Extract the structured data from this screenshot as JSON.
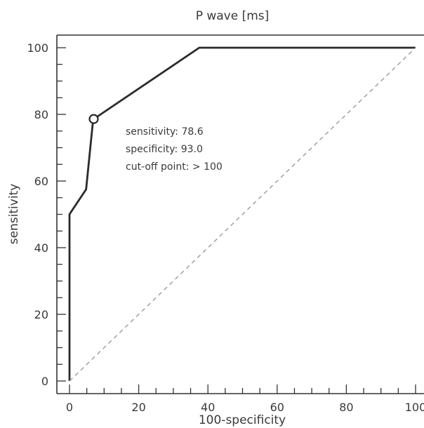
{
  "chart_data": {
    "type": "line",
    "title": "P wave [ms]",
    "xlabel": "100-specificity",
    "ylabel": "sensitivity",
    "xlim": [
      0,
      100
    ],
    "ylim": [
      0,
      100
    ],
    "x_ticks": [
      0,
      20,
      40,
      60,
      80,
      100
    ],
    "y_ticks": [
      0,
      20,
      40,
      60,
      80,
      100
    ],
    "grid": false,
    "series": [
      {
        "x": [
          0,
          0,
          0,
          0.3,
          4.8,
          6.8,
          7.0,
          37.5,
          100
        ],
        "y": [
          0,
          48,
          50,
          50.5,
          57.5,
          78.1,
          78.6,
          100,
          100
        ],
        "style": "solid",
        "color": "#2b2b2b"
      },
      {
        "x": [
          0,
          100
        ],
        "y": [
          0,
          100
        ],
        "style": "dashed",
        "color": "#9a9a9a"
      }
    ],
    "highlight_point": {
      "x": 7.0,
      "y": 78.6
    },
    "annotation_lines": [
      "sensitivity: 78.6",
      "specificity: 93.0",
      "cut-off point: > 100"
    ]
  }
}
